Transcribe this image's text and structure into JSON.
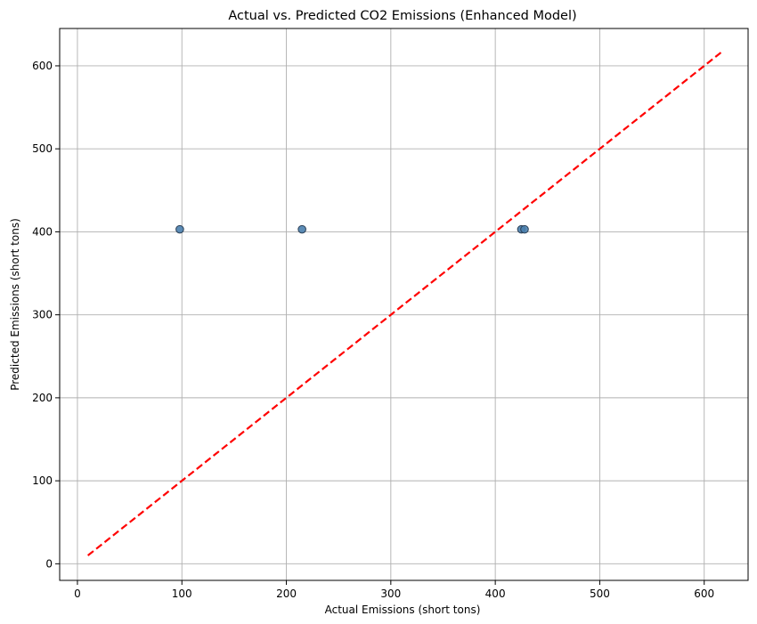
{
  "chart_data": {
    "type": "scatter",
    "title": "Actual vs. Predicted CO2 Emissions (Enhanced Model)",
    "xlabel": "Actual Emissions (short tons)",
    "ylabel": "Predicted Emissions (short tons)",
    "xlim": [
      -17,
      642
    ],
    "ylim": [
      -20,
      645
    ],
    "xticks": [
      0,
      100,
      200,
      300,
      400,
      500,
      600
    ],
    "yticks": [
      0,
      100,
      200,
      300,
      400,
      500,
      600
    ],
    "grid": true,
    "points": [
      {
        "x": 98,
        "y": 403
      },
      {
        "x": 215,
        "y": 403
      },
      {
        "x": 425,
        "y": 403
      },
      {
        "x": 428,
        "y": 403
      }
    ],
    "reference_line": {
      "x": [
        10,
        616
      ],
      "y": [
        10,
        616
      ],
      "color": "#ff0000",
      "style": "dashed"
    },
    "colors": {
      "point_fill": "#4a7fae",
      "point_edge": "#2b3f55",
      "grid": "#b0b0b0",
      "reference": "#ff0000"
    }
  }
}
